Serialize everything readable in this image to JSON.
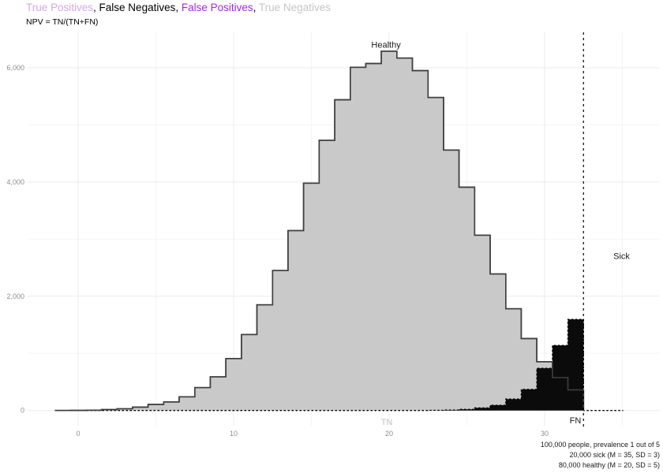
{
  "header": {
    "title_segments": [
      {
        "id": "true-positives",
        "text": "True Positives",
        "color": "#d4a7e8"
      },
      {
        "id": "false-negatives",
        "text": "False Negatives",
        "color": "#000000"
      },
      {
        "id": "false-positives",
        "text": "False Positives",
        "color": "#a228e0"
      },
      {
        "id": "true-negatives",
        "text": "True Negatives",
        "color": "#c6c6c6"
      }
    ],
    "separator": ", ",
    "subtitle": "NPV = TN/(TN+FN)"
  },
  "caption": {
    "line1": "100,000 people, prevalence 1 out of 5",
    "line2": "20,000 sick (M = 35, SD = 3)",
    "line3": "80,000 healthy (M = 20, SD = 5)"
  },
  "chart_data": {
    "type": "histogram",
    "title": "True Positives, False Negatives, False Positives, True Negatives",
    "subtitle": "NPV = TN/(TN+FN)",
    "x_axis": {
      "ticks": [
        0,
        10,
        20,
        30
      ],
      "tick_labels": [
        "0",
        "10",
        "20",
        "30"
      ],
      "minor": [
        5,
        15,
        25,
        35
      ],
      "range": [
        -3.2,
        37.4
      ]
    },
    "y_axis": {
      "ticks": [
        0,
        2000,
        4000,
        6000
      ],
      "tick_labels": [
        "0",
        "2,000",
        "4,000",
        "6,000"
      ],
      "minor": [
        1000,
        3000,
        5000
      ],
      "range": [
        -270,
        6630
      ]
    },
    "grid": {
      "major_color": "#ebebeb",
      "minor_color": "#f5f5f5"
    },
    "tick_label_color": "#8e8e8e",
    "threshold_x": 32.5,
    "threshold_color": "#000000",
    "series": [
      {
        "name": "healthy-true-negatives",
        "fill": "#c9c9c9",
        "stroke": "#3f3f3f",
        "dash": "",
        "bin_center_start": -1,
        "bin_width": 1,
        "clip_at": 32.5,
        "tail_to": null,
        "values": [
          0,
          2,
          5,
          15,
          30,
          60,
          105,
          150,
          240,
          400,
          590,
          910,
          1330,
          1850,
          2450,
          3150,
          3980,
          4730,
          5440,
          6010,
          6075,
          6290,
          6170,
          5950,
          5480,
          4560,
          3910,
          3070,
          2390,
          1780,
          1260,
          855,
          575,
          360
        ]
      },
      {
        "name": "sick-false-negatives",
        "fill": "#0b0b0b",
        "stroke": "#000000",
        "dash": "2.5,2.5",
        "bin_center_start": -1,
        "bin_width": 1,
        "clip_at": 32.5,
        "tail_to": 35.05,
        "values": [
          0,
          0,
          0,
          0,
          0,
          0,
          0,
          0,
          0,
          0,
          0,
          0,
          0,
          0,
          0,
          0,
          0,
          0,
          0,
          0,
          0,
          0,
          0,
          0,
          3,
          8,
          20,
          45,
          92,
          200,
          370,
          740,
          1140,
          1595
        ]
      }
    ],
    "annotations": [
      {
        "id": "healthy-label",
        "text": "Healthy",
        "x": 19.8,
        "y": 6350,
        "color": "#1a1a1a",
        "anchor": "middle"
      },
      {
        "id": "sick-label",
        "text": "Sick",
        "x": 34.95,
        "y": 2650,
        "color": "#1a1a1a",
        "anchor": "middle"
      },
      {
        "id": "tn-label",
        "text": "TN",
        "x": 19.85,
        "y": -255,
        "color": "#c2c2c2",
        "anchor": "middle"
      },
      {
        "id": "fn-label",
        "text": "FN",
        "x": 32.35,
        "y": -225,
        "color": "#1a1a1a",
        "anchor": "end"
      }
    ]
  }
}
